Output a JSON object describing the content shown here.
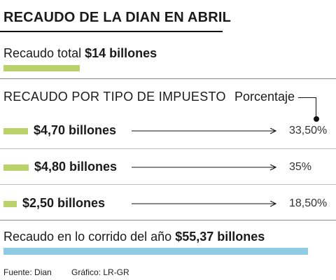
{
  "title": "RECAUDO DE LA DIAN EN ABRIL",
  "total": {
    "label": "Recaudo total",
    "value": "$14 billones"
  },
  "section_label": "RECAUDO POR TIPO DE IMPUESTO",
  "percent_header": "Porcentaje",
  "rows": [
    {
      "value_label": "$4,70 billones",
      "percent_label": "33,50%"
    },
    {
      "value_label": "$4,80 billones",
      "percent_label": "35%"
    },
    {
      "value_label": "$2,50 billones",
      "percent_label": "18,50%"
    }
  ],
  "ytd": {
    "label": "Recaudo en lo corrido del año",
    "value": "$55,37 billones"
  },
  "source": "Fuente: Dian",
  "credit": "Gráfico: LR-GR",
  "colors": {
    "green_bar": "#b9d36a",
    "blue_bar": "#8fcbe3",
    "rule": "#bdbdbd"
  },
  "chart_data": {
    "type": "bar",
    "categories": [
      "",
      "",
      ""
    ],
    "values": [
      4.7,
      4.8,
      2.5
    ],
    "percentages": [
      33.5,
      35,
      18.5
    ],
    "total": 14,
    "ytd_total": 55.37,
    "unit": "billones"
  }
}
